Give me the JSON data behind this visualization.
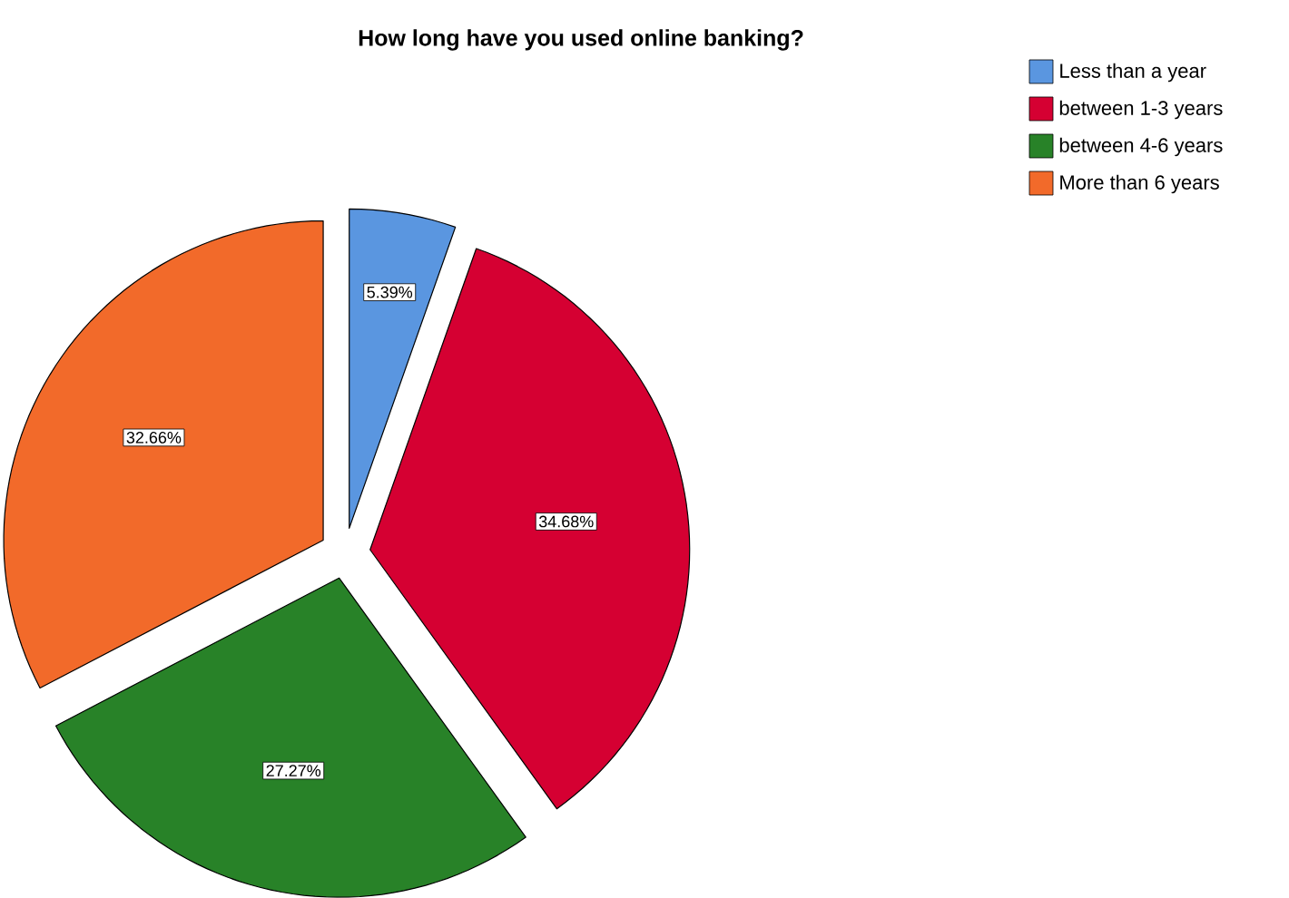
{
  "chart_data": {
    "type": "pie",
    "title": "How long have you used online banking?",
    "categories": [
      "Less than a year",
      "between 1-3 years",
      "between 4-6 years",
      "More than 6 years"
    ],
    "values": [
      5.39,
      34.68,
      27.27,
      32.66
    ],
    "colors": [
      "#5a96e0",
      "#d50032",
      "#288228",
      "#f26a2a"
    ],
    "value_labels": [
      "5.39%",
      "34.68%",
      "27.27%",
      "32.66%"
    ],
    "legend": "top right"
  }
}
